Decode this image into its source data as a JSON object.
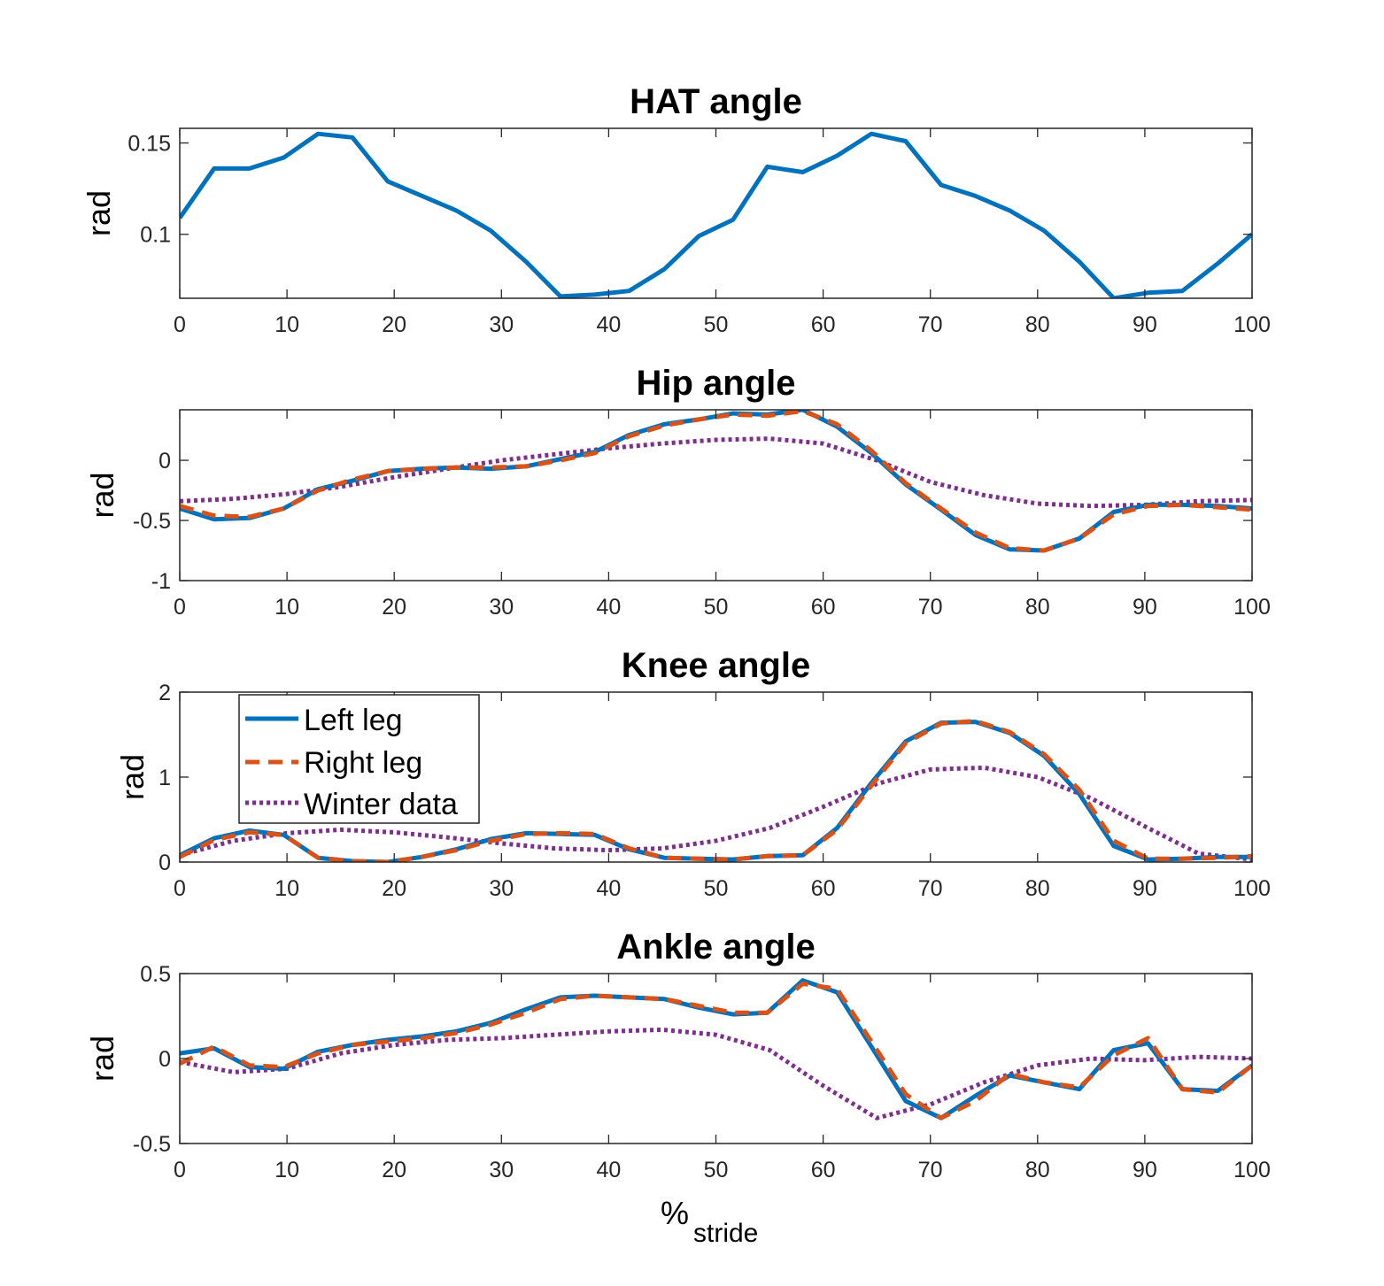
{
  "colors": {
    "left": "#0072BD",
    "right": "#D95319",
    "winter": "#7E2F8E"
  },
  "xlabel": {
    "main": "%",
    "sub": "stride"
  },
  "legend": [
    {
      "key": "left",
      "label": "Left leg"
    },
    {
      "key": "right",
      "label": "Right leg"
    },
    {
      "key": "winter",
      "label": "Winter data"
    }
  ],
  "chart_data": [
    {
      "type": "line",
      "title": "HAT angle",
      "ylabel": "rad",
      "xlim": [
        0,
        100
      ],
      "ylim": [
        0.065,
        0.158
      ],
      "xticks": [
        0,
        10,
        20,
        30,
        40,
        50,
        60,
        70,
        80,
        90,
        100
      ],
      "yticks": [
        0.1,
        0.15
      ],
      "yticklabels": [
        "0.1",
        "0.15"
      ],
      "series": [
        {
          "key": "left",
          "x": [
            0,
            3.2,
            6.5,
            9.7,
            12.9,
            16.1,
            19.4,
            22.6,
            25.8,
            29.0,
            32.3,
            35.5,
            38.7,
            41.9,
            45.2,
            48.4,
            51.6,
            54.8,
            58.1,
            61.3,
            64.5,
            67.7,
            71.0,
            74.2,
            77.4,
            80.6,
            83.9,
            87.1,
            90.3,
            93.5,
            96.8,
            100
          ],
          "y": [
            0.109,
            0.136,
            0.136,
            0.142,
            0.155,
            0.153,
            0.129,
            0.121,
            0.113,
            0.102,
            0.085,
            0.066,
            0.067,
            0.069,
            0.081,
            0.099,
            0.108,
            0.137,
            0.134,
            0.143,
            0.155,
            0.151,
            0.127,
            0.121,
            0.113,
            0.102,
            0.085,
            0.065,
            0.068,
            0.069,
            0.084,
            0.1
          ]
        }
      ]
    },
    {
      "type": "line",
      "title": "Hip angle",
      "ylabel": "rad",
      "xlim": [
        0,
        100
      ],
      "ylim": [
        -1.0,
        0.42
      ],
      "xticks": [
        0,
        10,
        20,
        30,
        40,
        50,
        60,
        70,
        80,
        90,
        100
      ],
      "yticks": [
        -1,
        -0.5,
        0
      ],
      "yticklabels": [
        "-1",
        "-0.5",
        "0"
      ],
      "series": [
        {
          "key": "left",
          "x": [
            0,
            3.2,
            6.5,
            9.7,
            12.9,
            16.1,
            19.4,
            22.6,
            25.8,
            29.0,
            32.3,
            35.5,
            38.7,
            41.9,
            45.2,
            48.4,
            51.6,
            54.8,
            58.1,
            61.3,
            64.5,
            67.7,
            71.0,
            74.2,
            77.4,
            80.6,
            83.9,
            87.1,
            90.3,
            93.5,
            96.8,
            100
          ],
          "y": [
            -0.4,
            -0.49,
            -0.48,
            -0.4,
            -0.24,
            -0.17,
            -0.09,
            -0.07,
            -0.06,
            -0.07,
            -0.05,
            0.01,
            0.07,
            0.21,
            0.3,
            0.34,
            0.39,
            0.38,
            0.42,
            0.28,
            0.06,
            -0.2,
            -0.41,
            -0.62,
            -0.74,
            -0.75,
            -0.65,
            -0.43,
            -0.37,
            -0.37,
            -0.38,
            -0.4
          ]
        },
        {
          "key": "right",
          "x": [
            0,
            3.2,
            6.5,
            9.7,
            12.9,
            16.1,
            19.4,
            22.6,
            25.8,
            29.0,
            32.3,
            35.5,
            38.7,
            41.9,
            45.2,
            48.4,
            51.6,
            54.8,
            58.1,
            61.3,
            64.5,
            67.7,
            71.0,
            74.2,
            77.4,
            80.6,
            83.9,
            87.1,
            90.3,
            93.5,
            96.8,
            100
          ],
          "y": [
            -0.38,
            -0.46,
            -0.47,
            -0.4,
            -0.25,
            -0.16,
            -0.09,
            -0.07,
            -0.06,
            -0.06,
            -0.05,
            0.0,
            0.06,
            0.2,
            0.29,
            0.34,
            0.38,
            0.37,
            0.41,
            0.3,
            0.08,
            -0.19,
            -0.4,
            -0.6,
            -0.73,
            -0.75,
            -0.65,
            -0.45,
            -0.38,
            -0.37,
            -0.39,
            -0.41
          ]
        },
        {
          "key": "winter",
          "x": [
            0,
            5,
            10,
            15,
            20,
            25,
            30,
            35,
            40,
            45,
            50,
            55,
            60,
            65,
            70,
            75,
            80,
            85,
            90,
            95,
            100
          ],
          "y": [
            -0.34,
            -0.32,
            -0.28,
            -0.22,
            -0.14,
            -0.07,
            0.0,
            0.05,
            0.1,
            0.14,
            0.17,
            0.18,
            0.14,
            0.0,
            -0.18,
            -0.29,
            -0.36,
            -0.38,
            -0.37,
            -0.34,
            -0.33
          ]
        }
      ]
    },
    {
      "type": "line",
      "title": "Knee angle",
      "ylabel": "rad",
      "xlim": [
        0,
        100
      ],
      "ylim": [
        0,
        2
      ],
      "xticks": [
        0,
        10,
        20,
        30,
        40,
        50,
        60,
        70,
        80,
        90,
        100
      ],
      "yticks": [
        0,
        1,
        2
      ],
      "yticklabels": [
        "0",
        "1",
        "2"
      ],
      "series": [
        {
          "key": "left",
          "x": [
            0,
            3.2,
            6.5,
            9.7,
            12.9,
            16.1,
            19.4,
            22.6,
            25.8,
            29.0,
            32.3,
            35.5,
            38.7,
            41.9,
            45.2,
            48.4,
            51.6,
            54.8,
            58.1,
            61.3,
            64.5,
            67.7,
            71.0,
            74.2,
            77.4,
            80.6,
            83.9,
            87.1,
            90.3,
            93.5,
            96.8,
            100
          ],
          "y": [
            0.08,
            0.28,
            0.37,
            0.32,
            0.05,
            0.01,
            0.0,
            0.06,
            0.15,
            0.27,
            0.34,
            0.33,
            0.32,
            0.15,
            0.05,
            0.04,
            0.03,
            0.07,
            0.08,
            0.4,
            0.93,
            1.42,
            1.64,
            1.65,
            1.52,
            1.25,
            0.8,
            0.19,
            0.03,
            0.04,
            0.06,
            0.06
          ]
        },
        {
          "key": "right",
          "x": [
            0,
            3.2,
            6.5,
            9.7,
            12.9,
            16.1,
            19.4,
            22.6,
            25.8,
            29.0,
            32.3,
            35.5,
            38.7,
            41.9,
            45.2,
            48.4,
            51.6,
            54.8,
            58.1,
            61.3,
            64.5,
            67.7,
            71.0,
            74.2,
            77.4,
            80.6,
            83.9,
            87.1,
            90.3,
            93.5,
            96.8,
            100
          ],
          "y": [
            0.06,
            0.26,
            0.35,
            0.32,
            0.05,
            0.01,
            0.0,
            0.06,
            0.14,
            0.25,
            0.33,
            0.34,
            0.33,
            0.16,
            0.05,
            0.04,
            0.03,
            0.07,
            0.08,
            0.38,
            0.9,
            1.4,
            1.63,
            1.66,
            1.53,
            1.27,
            0.85,
            0.25,
            0.04,
            0.04,
            0.05,
            0.07
          ]
        },
        {
          "key": "winter",
          "x": [
            0,
            5,
            10,
            15,
            20,
            25,
            30,
            35,
            40,
            45,
            50,
            55,
            60,
            65,
            70,
            75,
            80,
            85,
            90,
            95,
            100
          ],
          "y": [
            0.08,
            0.25,
            0.34,
            0.38,
            0.35,
            0.29,
            0.22,
            0.16,
            0.14,
            0.16,
            0.25,
            0.4,
            0.65,
            0.92,
            1.09,
            1.11,
            1.0,
            0.75,
            0.42,
            0.1,
            0.03
          ]
        }
      ]
    },
    {
      "type": "line",
      "title": "Ankle angle",
      "ylabel": "rad",
      "xlim": [
        0,
        100
      ],
      "ylim": [
        -0.5,
        0.5
      ],
      "xticks": [
        0,
        10,
        20,
        30,
        40,
        50,
        60,
        70,
        80,
        90,
        100
      ],
      "yticks": [
        -0.5,
        0,
        0.5
      ],
      "yticklabels": [
        "-0.5",
        "0",
        "0.5"
      ],
      "series": [
        {
          "key": "left",
          "x": [
            0,
            3.2,
            6.5,
            9.7,
            12.9,
            16.1,
            19.4,
            22.6,
            25.8,
            29.0,
            32.3,
            35.5,
            38.7,
            41.9,
            45.2,
            48.4,
            51.6,
            54.8,
            58.1,
            61.3,
            64.5,
            67.7,
            71.0,
            74.2,
            77.4,
            80.6,
            83.9,
            87.1,
            90.3,
            93.5,
            96.8,
            100
          ],
          "y": [
            0.03,
            0.06,
            -0.05,
            -0.06,
            0.04,
            0.08,
            0.11,
            0.13,
            0.16,
            0.21,
            0.29,
            0.36,
            0.37,
            0.36,
            0.35,
            0.3,
            0.26,
            0.27,
            0.46,
            0.39,
            0.07,
            -0.25,
            -0.35,
            -0.22,
            -0.1,
            -0.14,
            -0.18,
            0.05,
            0.09,
            -0.18,
            -0.19,
            -0.04
          ]
        },
        {
          "key": "right",
          "x": [
            0,
            3.2,
            6.5,
            9.7,
            12.9,
            16.1,
            19.4,
            22.6,
            25.8,
            29.0,
            32.3,
            35.5,
            38.7,
            41.9,
            45.2,
            48.4,
            51.6,
            54.8,
            58.1,
            61.3,
            64.5,
            67.7,
            71.0,
            74.2,
            77.4,
            80.6,
            83.9,
            87.1,
            90.3,
            93.5,
            96.8,
            100
          ],
          "y": [
            -0.03,
            0.07,
            -0.04,
            -0.05,
            0.03,
            0.08,
            0.1,
            0.12,
            0.15,
            0.2,
            0.27,
            0.35,
            0.37,
            0.36,
            0.35,
            0.31,
            0.27,
            0.27,
            0.44,
            0.41,
            0.1,
            -0.21,
            -0.35,
            -0.25,
            -0.09,
            -0.14,
            -0.17,
            0.02,
            0.12,
            -0.18,
            -0.2,
            -0.04
          ]
        },
        {
          "key": "winter",
          "x": [
            0,
            5,
            10,
            15,
            20,
            25,
            30,
            35,
            40,
            45,
            50,
            55,
            60,
            65,
            70,
            75,
            80,
            85,
            90,
            95,
            100
          ],
          "y": [
            -0.02,
            -0.08,
            -0.06,
            0.03,
            0.08,
            0.11,
            0.12,
            0.14,
            0.16,
            0.17,
            0.14,
            0.05,
            -0.16,
            -0.35,
            -0.27,
            -0.14,
            -0.04,
            0.0,
            -0.01,
            0.01,
            0.0
          ]
        }
      ]
    }
  ]
}
